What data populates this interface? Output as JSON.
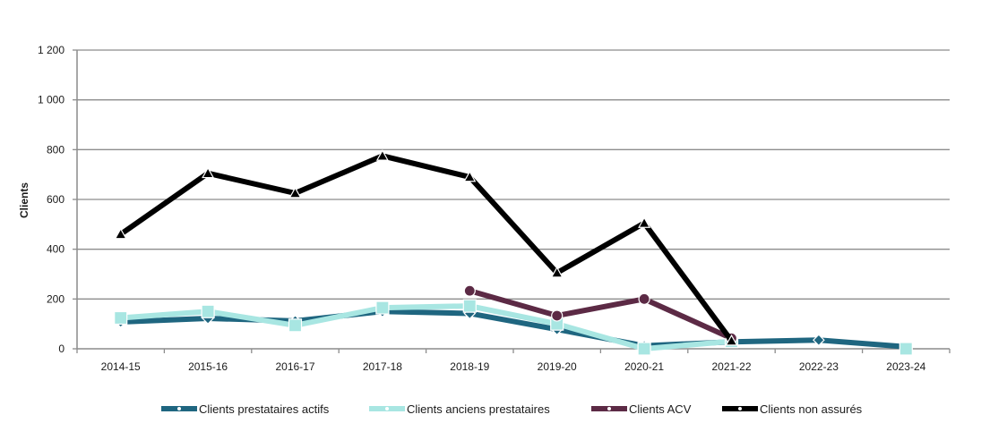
{
  "chart_data": {
    "type": "line",
    "title": "",
    "xlabel": "",
    "ylabel": "Clients",
    "ylim": [
      0,
      1200
    ],
    "yticks": [
      0,
      200,
      400,
      600,
      800,
      1000,
      1200
    ],
    "ytick_labels": [
      "0",
      "200",
      "400",
      "600",
      "800",
      "1 000",
      "1 200"
    ],
    "grid": true,
    "legend_position": "bottom",
    "categories": [
      "2014-15",
      "2015-16",
      "2016-17",
      "2017-18",
      "2018-19",
      "2019-20",
      "2020-21",
      "2021-22",
      "2022-23",
      "2023-24"
    ],
    "series": [
      {
        "name": "Clients prestataires actifs",
        "color": "#1f6680",
        "marker": "diamond",
        "values": [
          108,
          122,
          112,
          150,
          142,
          78,
          12,
          28,
          35,
          8
        ]
      },
      {
        "name": "Clients anciens prestataires",
        "color": "#a8e6e2",
        "marker": "square",
        "values": [
          124,
          150,
          94,
          165,
          172,
          100,
          0,
          30,
          null,
          0
        ]
      },
      {
        "name": "Clients ACV",
        "color": "#5c2a45",
        "marker": "circle",
        "values": [
          null,
          null,
          null,
          null,
          233,
          133,
          200,
          42,
          null,
          null
        ]
      },
      {
        "name": "Clients non assurés",
        "color": "#000000",
        "marker": "triangle",
        "values": [
          460,
          705,
          625,
          775,
          690,
          305,
          505,
          32,
          null,
          null
        ]
      }
    ]
  }
}
